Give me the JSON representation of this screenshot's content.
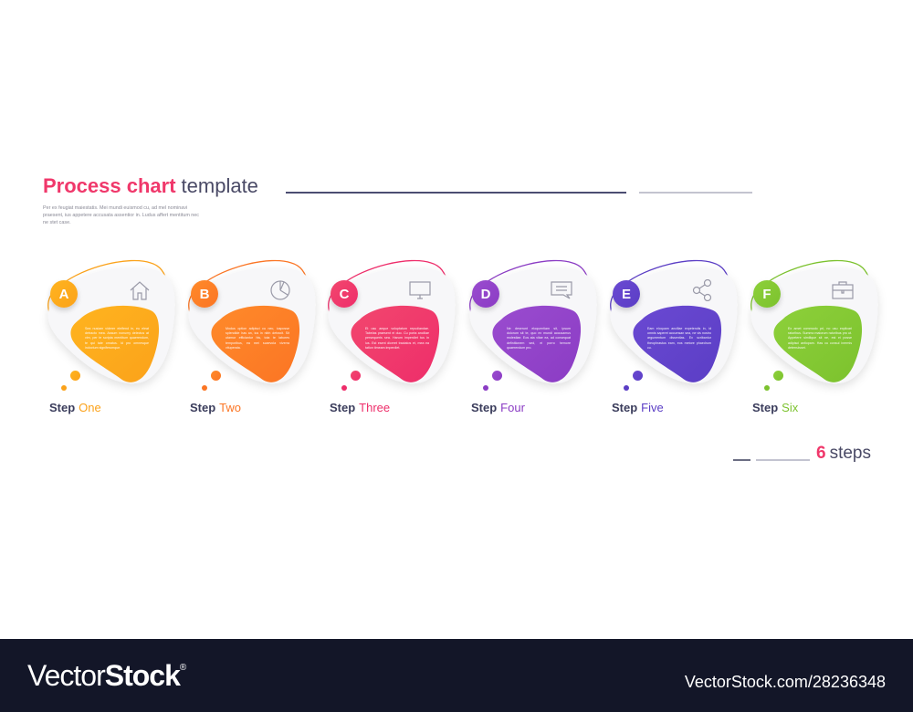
{
  "header": {
    "title_bold": "Process chart",
    "title_light": "template",
    "subtitle": "Per ex feugiat maiestatis. Mei mundi euismod cu, ad mel nominavi praesent, ius appetere accusata assentior in. Ludus affert mentitum nec ne stet case."
  },
  "steps": [
    {
      "letter": "A",
      "icon": "home-icon",
      "label_a": "Step",
      "label_b": "One",
      "color": "#fba21a",
      "color2": "#ffb41f",
      "text": "Sea nusiam viderer eleifend in, eu eleat detracto mea. Assum nonumy delectus at vim, per te scripta mentitum quaerendum, te qui tale ornatus. Id pro omnesque indoctum signiferumque."
    },
    {
      "letter": "B",
      "icon": "pie-chart-icon",
      "label_a": "Step",
      "label_b": "Two",
      "color": "#fb7524",
      "color2": "#ff8a2a",
      "text": "Modus option adipisci cu nec, iusposse splendide has an, ius in nibh detraxit. Sit utamur efficiantur his, tota te labores temporibus, ea mei scaevola viverra vituperata."
    },
    {
      "letter": "C",
      "icon": "monitor-icon",
      "label_a": "Step",
      "label_b": "Three",
      "color": "#ee2d6a",
      "color2": "#f2476e",
      "text": "Et usu aeque voluptatum repudiandae. Tabelas praesent ei duo. Cu porta ancillae persequeris sea. Harum imperdiet tus in ius. Est esent diceret tractatos et, mea ea tation timeam imperdiet."
    },
    {
      "letter": "D",
      "icon": "chat-icon",
      "label_a": "Step",
      "label_b": "Four",
      "color": "#8b3cc4",
      "color2": "#9a4ccf",
      "text": "Ne deserunt eloquentiam sit, ipsum dolorum sit te, quo ex mundi accusamus molestiae. Eos ata vitae ea, ad consequat definitionem sed, ei porro hemore quaerendum pro."
    },
    {
      "letter": "E",
      "icon": "share-icon",
      "label_a": "Step",
      "label_b": "Five",
      "color": "#5b3ec5",
      "color2": "#6a49d2",
      "text": "Eam eloquam ancillae expetendis in, id omnis saperet accumsan sea, ne vis nostro argumentum dissentias. Ex scribantur theophrastus eam, eos metore phaedrum cu."
    },
    {
      "letter": "F",
      "icon": "briefcase-icon",
      "label_a": "Step",
      "label_b": "Six",
      "color": "#7cc22e",
      "color2": "#8dd03a",
      "text": "Ex amet commodo pri, no usu explicari ratoribus. Summo maiorum ratoribus pro ut. Appetere similique sit ne, est ei posse adipisci antiopam. Has cu consul inermis deterruisset."
    }
  ],
  "footer": {
    "count": "6",
    "count_word": "steps"
  },
  "watermark": {
    "logo_light": "Vector",
    "logo_bold": "Stock",
    "logo_reg": "®",
    "url": "VectorStock.com/28236348"
  }
}
